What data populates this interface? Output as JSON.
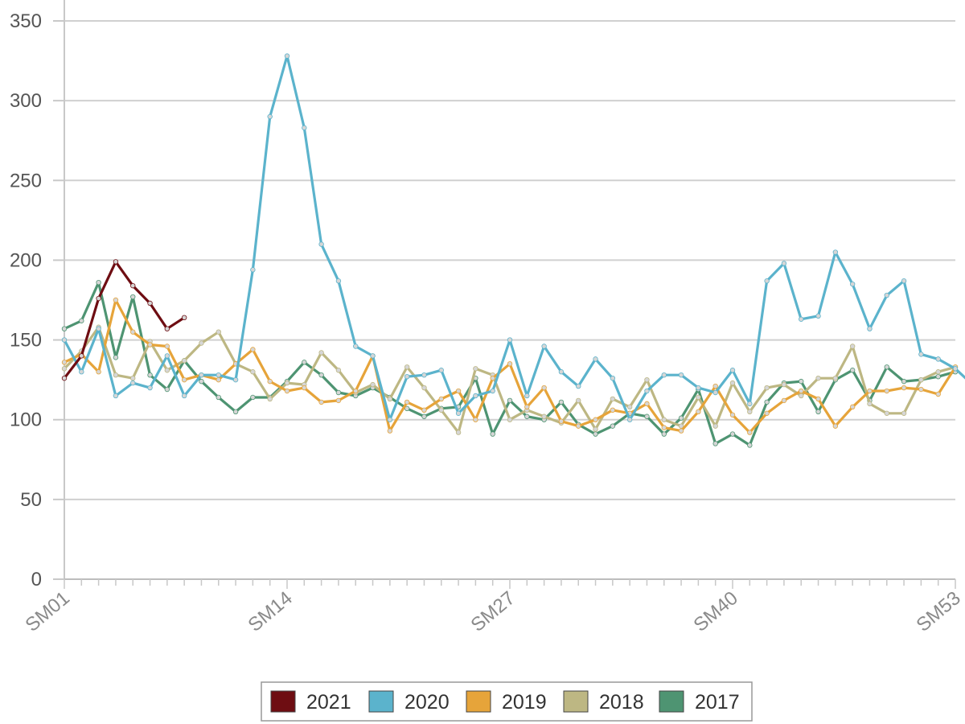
{
  "chart_data": {
    "type": "line",
    "title": "",
    "xlabel": "",
    "ylabel": "",
    "ylim": [
      0,
      350
    ],
    "y_ticks": [
      "0",
      "50",
      "100",
      "150",
      "200",
      "250",
      "300",
      "350"
    ],
    "x_tick_labels": [
      "SM01",
      "SM14",
      "SM27",
      "SM40",
      "SM53"
    ],
    "grid": true,
    "legend_position": "bottom",
    "series": [
      {
        "name": "2021",
        "color": "#6e0d12",
        "values": [
          126,
          140,
          176,
          199,
          184,
          173,
          157,
          164
        ]
      },
      {
        "name": "2020",
        "color": "#5bb3cc",
        "values": [
          150,
          130,
          157,
          115,
          123,
          120,
          140,
          115,
          128,
          128,
          125,
          194,
          290,
          328,
          283,
          210,
          187,
          146,
          140,
          100,
          127,
          128,
          131,
          104,
          115,
          118,
          150,
          115,
          146,
          130,
          121,
          138,
          126,
          100,
          118,
          128,
          128,
          120,
          117,
          131,
          110,
          187,
          198,
          163,
          165,
          205,
          185,
          157,
          178,
          187,
          141,
          138,
          132,
          122
        ]
      },
      {
        "name": "2019",
        "color": "#e6a43a",
        "values": [
          136,
          141,
          130,
          175,
          155,
          147,
          146,
          125,
          128,
          125,
          135,
          144,
          124,
          118,
          120,
          111,
          112,
          118,
          140,
          93,
          111,
          106,
          113,
          118,
          100,
          126,
          135,
          108,
          120,
          99,
          96,
          100,
          106,
          104,
          110,
          95,
          93,
          105,
          121,
          103,
          92,
          104,
          112,
          118,
          113,
          96,
          108,
          118,
          118,
          120,
          119,
          116,
          133
        ]
      },
      {
        "name": "2018",
        "color": "#bdb783",
        "values": [
          132,
          143,
          158,
          128,
          126,
          149,
          131,
          137,
          148,
          155,
          135,
          130,
          113,
          123,
          122,
          142,
          131,
          117,
          122,
          113,
          133,
          120,
          106,
          92,
          132,
          128,
          100,
          106,
          102,
          98,
          112,
          94,
          113,
          108,
          125,
          100,
          96,
          114,
          96,
          123,
          105,
          120,
          122,
          115,
          126,
          126,
          146,
          110,
          104,
          104,
          125,
          130,
          133
        ]
      },
      {
        "name": "2017",
        "color": "#4e9472",
        "values": [
          157,
          162,
          186,
          139,
          177,
          128,
          119,
          137,
          124,
          114,
          105,
          114,
          114,
          124,
          136,
          128,
          117,
          115,
          120,
          114,
          107,
          102,
          107,
          108,
          126,
          91,
          112,
          102,
          100,
          111,
          97,
          91,
          96,
          104,
          102,
          91,
          101,
          119,
          85,
          91,
          84,
          111,
          123,
          124,
          105,
          125,
          131,
          112,
          133,
          124,
          125,
          127,
          130
        ]
      }
    ]
  }
}
